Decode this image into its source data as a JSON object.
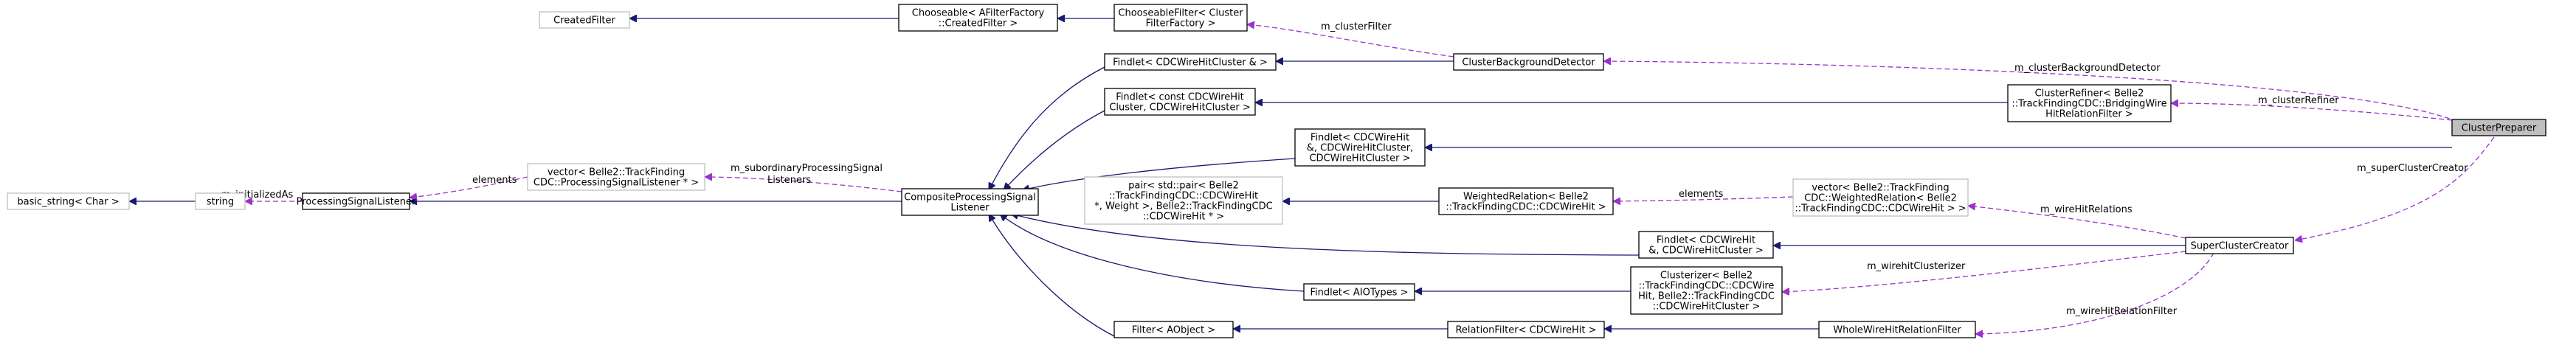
{
  "nodes": {
    "n_created_filter": {
      "lines": [
        "CreatedFilter"
      ],
      "style": "gray"
    },
    "n_chooseable_afilter": {
      "lines": [
        "Chooseable< AFilterFactory",
        "::CreatedFilter >"
      ],
      "style": "solid"
    },
    "n_chooseable_cluster": {
      "lines": [
        "ChooseableFilter< Cluster",
        "FilterFactory >"
      ],
      "style": "solid"
    },
    "n_findlet_cdc_ref": {
      "lines": [
        "Findlet< CDCWireHitCluster & >"
      ],
      "style": "solid"
    },
    "n_cluster_bg": {
      "lines": [
        "ClusterBackgroundDetector"
      ],
      "style": "solid"
    },
    "n_findlet_const": {
      "lines": [
        "Findlet< const CDCWireHit",
        "Cluster, CDCWireHitCluster >"
      ],
      "style": "solid"
    },
    "n_cluster_refiner": {
      "lines": [
        "ClusterRefiner< Belle2",
        "::TrackFindingCDC::BridgingWire",
        "HitRelationFilter >"
      ],
      "style": "solid"
    },
    "n_cluster_preparer": {
      "lines": [
        "ClusterPreparer"
      ],
      "style": "selected"
    },
    "n_findlet_hit_amp": {
      "lines": [
        "Findlet< CDCWireHit",
        "&, CDCWireHitCluster,",
        "CDCWireHitCluster >"
      ],
      "style": "solid"
    },
    "n_basic_string": {
      "lines": [
        "basic_string< Char >"
      ],
      "style": "gray"
    },
    "n_string": {
      "lines": [
        "string"
      ],
      "style": "gray"
    },
    "n_psl": {
      "lines": [
        "ProcessingSignalListener"
      ],
      "style": "solid"
    },
    "n_vector_psl": {
      "lines": [
        "vector< Belle2::TrackFinding",
        "CDC::ProcessingSignalListener * >"
      ],
      "style": "gray"
    },
    "n_cpsl": {
      "lines": [
        "CompositeProcessingSignal",
        "Listener"
      ],
      "style": "solid"
    },
    "n_pair": {
      "lines": [
        "pair< std::pair< Belle2",
        "::TrackFindingCDC::CDCWireHit",
        "*, Weight >, Belle2::TrackFindingCDC",
        "::CDCWireHit * >"
      ],
      "style": "gray"
    },
    "n_weighted_rel": {
      "lines": [
        "WeightedRelation< Belle2",
        "::TrackFindingCDC::CDCWireHit >"
      ],
      "style": "solid"
    },
    "n_vector_weighted": {
      "lines": [
        "vector< Belle2::TrackFinding",
        "CDC::WeightedRelation< Belle2",
        "::TrackFindingCDC::CDCWireHit > >"
      ],
      "style": "gray"
    },
    "n_findlet_hit_cluster": {
      "lines": [
        "Findlet< CDCWireHit",
        "&, CDCWireHitCluster >"
      ],
      "style": "solid"
    },
    "n_super_cluster": {
      "lines": [
        "SuperClusterCreator"
      ],
      "style": "solid"
    },
    "n_findlet_aio": {
      "lines": [
        "Findlet< AIOTypes >"
      ],
      "style": "solid"
    },
    "n_clusterizer": {
      "lines": [
        "Clusterizer< Belle2",
        "::TrackFindingCDC::CDCWire",
        "Hit, Belle2::TrackFindingCDC",
        "::CDCWireHitCluster >"
      ],
      "style": "solid"
    },
    "n_filter_aobject": {
      "lines": [
        "Filter< AObject >"
      ],
      "style": "solid"
    },
    "n_relation_filter": {
      "lines": [
        "RelationFilter< CDCWireHit >"
      ],
      "style": "solid"
    },
    "n_whole_wire": {
      "lines": [
        "WholeWireHitRelationFilter"
      ],
      "style": "solid"
    }
  },
  "edge_labels": {
    "l_cluster_filter": "m_clusterFilter",
    "l_bg_detector": "m_clusterBackgroundDetector",
    "l_cluster_refiner": "m_clusterRefiner",
    "l_super_creator": "m_superClusterCreator",
    "l_sub_psl": [
      "m_subordinaryProcessingSignal",
      "Listeners"
    ],
    "l_elements_psl": "elements",
    "l_initialized_as": "m_initializedAs",
    "l_elements_wr": "elements",
    "l_wire_relations": "m_wireHitRelations",
    "l_wire_clusterizer": "m_wirehitClusterizer",
    "l_wire_relation_filter": "m_wireHitRelationFilter"
  }
}
